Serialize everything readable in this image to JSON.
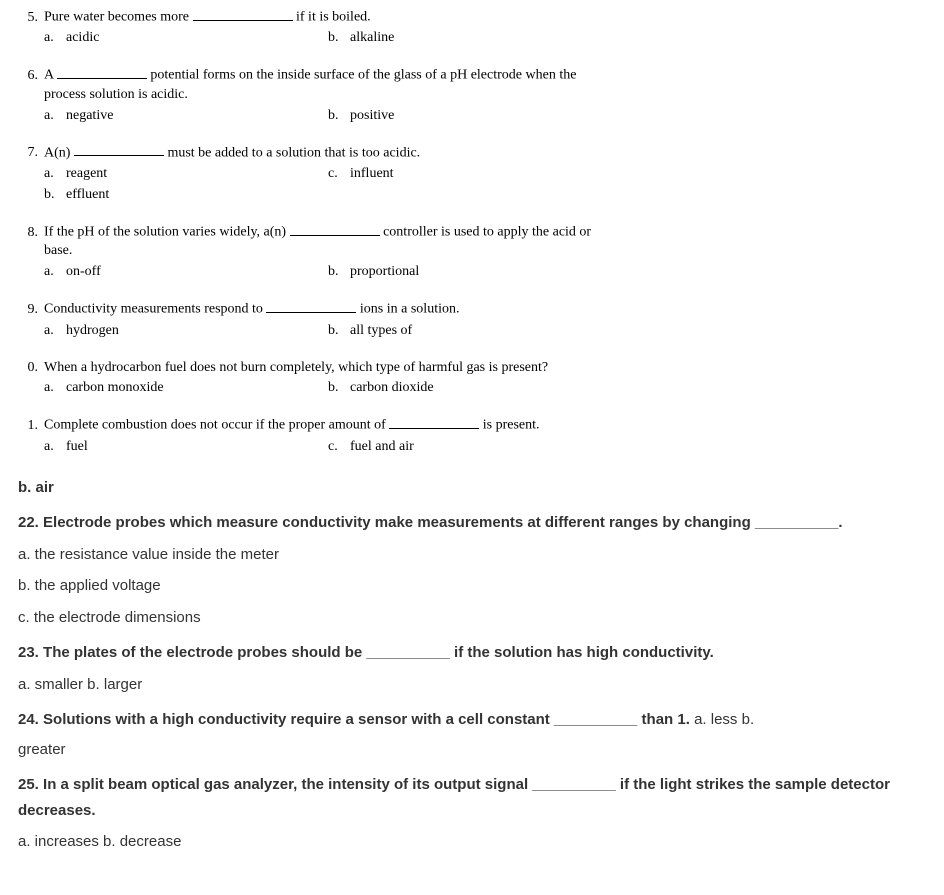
{
  "serif_questions": [
    {
      "num": "5.",
      "stem_before": "Pure water becomes more ",
      "blank_w": 100,
      "stem_after": " if it is boiled.",
      "options": [
        {
          "letter": "a.",
          "text": "acidic",
          "col": 1
        },
        {
          "letter": "b.",
          "text": "alkaline",
          "col": 2
        }
      ]
    },
    {
      "num": "6.",
      "stem_before": "A ",
      "blank_w": 90,
      "stem_after": " potential forms on the inside surface of the glass of a pH electrode when the",
      "stem_line2": "process solution is acidic.",
      "options": [
        {
          "letter": "a.",
          "text": "negative",
          "col": 1
        },
        {
          "letter": "b.",
          "text": "positive",
          "col": 2
        }
      ]
    },
    {
      "num": "7.",
      "stem_before": "A(n) ",
      "blank_w": 90,
      "stem_after": " must be added to a solution that is too acidic.",
      "options": [
        {
          "letter": "a.",
          "text": "reagent",
          "col": 1
        },
        {
          "letter": "c.",
          "text": "influent",
          "col": 2
        },
        {
          "letter": "b.",
          "text": "effluent",
          "col": 1,
          "row": 2
        }
      ]
    },
    {
      "num": "8.",
      "stem_before": "If the pH of the solution varies widely, a(n) ",
      "blank_w": 90,
      "stem_after": " controller is used to apply the acid or",
      "stem_line2": "base.",
      "options": [
        {
          "letter": "a.",
          "text": "on-off",
          "col": 1
        },
        {
          "letter": "b.",
          "text": "proportional",
          "col": 2
        }
      ]
    },
    {
      "num": "9.",
      "stem_before": "Conductivity measurements respond to ",
      "blank_w": 90,
      "stem_after": " ions in a solution.",
      "options": [
        {
          "letter": "a.",
          "text": "hydrogen",
          "col": 1
        },
        {
          "letter": "b.",
          "text": "all types of",
          "col": 2
        }
      ]
    },
    {
      "num": "0.",
      "stem_plain": "When a hydrocarbon fuel does not burn completely, which type of harmful gas is present?",
      "options": [
        {
          "letter": "a.",
          "text": "carbon monoxide",
          "col": 1
        },
        {
          "letter": "b.",
          "text": "carbon dioxide",
          "col": 2
        }
      ]
    },
    {
      "num": "1.",
      "stem_before": "Complete combustion does not occur if the proper amount of ",
      "blank_w": 90,
      "stem_after": " is present.",
      "options": [
        {
          "letter": "a.",
          "text": "fuel",
          "col": 1
        },
        {
          "letter": "c.",
          "text": "fuel and air",
          "col": 2
        }
      ]
    }
  ],
  "sans_block": {
    "line_b_air": "b.  air",
    "q22_num": "22. ",
    "q22_text_before": "Electrode probes which measure conductivity make measurements at different ranges by changing ",
    "q22_blank": "__________.",
    "q22_a": "a. the resistance value inside the meter",
    "q22_b": "b. the applied voltage",
    "q22_c": "c. the electrode dimensions",
    "q23_num": "23. ",
    "q23_before": "The plates of the electrode probes should be ",
    "q23_blank": "__________",
    "q23_after": " if the solution has high conductivity.",
    "q23_opts": "a. smaller b. larger",
    "q24_num": "24. ",
    "q24_before": "Solutions with a high conductivity require a sensor with a cell constant ",
    "q24_blank": "__________",
    "q24_after": " than 1. ",
    "q24_opts_inline": "a. less b.",
    "q24_opts_wrap": "greater",
    "q25_num": "25. ",
    "q25_before": "In a split beam optical gas analyzer, the intensity of its output signal ",
    "q25_blank": "__________",
    "q25_after": " if the light strikes the sample detector decreases.",
    "q25_opts": "a. increases b. decrease"
  }
}
